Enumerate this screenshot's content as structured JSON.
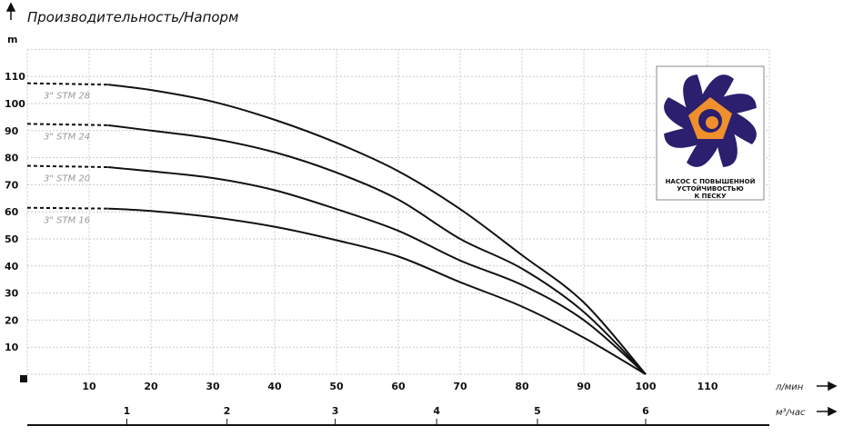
{
  "chart_data": {
    "type": "line",
    "title": "Производительность/Напорм",
    "ylabel": "m",
    "xlabel": "л/мин",
    "x2label": "м³/час",
    "xlim": [
      0,
      120
    ],
    "ylim": [
      0,
      120
    ],
    "grid": true,
    "x_ticks": [
      10,
      20,
      30,
      40,
      50,
      60,
      70,
      80,
      90,
      100,
      110
    ],
    "y_ticks": [
      10,
      20,
      30,
      40,
      50,
      60,
      70,
      80,
      90,
      100,
      110
    ],
    "x2_ticks": [
      {
        "label": "1",
        "lpm": 16.1
      },
      {
        "label": "2",
        "lpm": 32.3
      },
      {
        "label": "3",
        "lpm": 49.8
      },
      {
        "label": "4",
        "lpm": 66.2
      },
      {
        "label": "5",
        "lpm": 82.5
      },
      {
        "label": "6",
        "lpm": 100
      }
    ],
    "series": [
      {
        "name": "3\" STM 28",
        "dashed_until": 13,
        "x": [
          0,
          13,
          20,
          30,
          40,
          50,
          60,
          70,
          80,
          90,
          100
        ],
        "y": [
          107.5,
          107,
          105,
          100.7,
          94,
          85.5,
          75,
          61,
          44,
          26.5,
          0
        ]
      },
      {
        "name": "3\" STM 24",
        "dashed_until": 13,
        "x": [
          0,
          13,
          20,
          30,
          40,
          50,
          60,
          70,
          80,
          90,
          100
        ],
        "y": [
          92.5,
          92,
          90,
          87,
          82,
          74.5,
          64.5,
          50,
          39,
          23,
          0
        ]
      },
      {
        "name": "3\" STM 20",
        "dashed_until": 13,
        "x": [
          0,
          13,
          20,
          30,
          40,
          50,
          60,
          70,
          80,
          90,
          100
        ],
        "y": [
          77,
          76.5,
          75,
          72.5,
          68,
          61,
          53,
          42,
          33,
          20,
          0
        ]
      },
      {
        "name": "3\" STM 16",
        "dashed_until": 13,
        "x": [
          0,
          13,
          20,
          30,
          40,
          50,
          60,
          70,
          80,
          90,
          100
        ],
        "y": [
          61.5,
          61.2,
          60.3,
          58,
          54.5,
          49.5,
          43.5,
          34,
          25,
          13.5,
          0
        ]
      }
    ]
  },
  "badge": {
    "lines": [
      "НАСОС С ПОВЫШЕННОЙ",
      "УСТОЙЧИВОСТЬЮ",
      "К ПЕСКУ"
    ],
    "colors": {
      "blade": "#2b1f6e",
      "core": "#f0902c",
      "border": "#888888"
    }
  }
}
